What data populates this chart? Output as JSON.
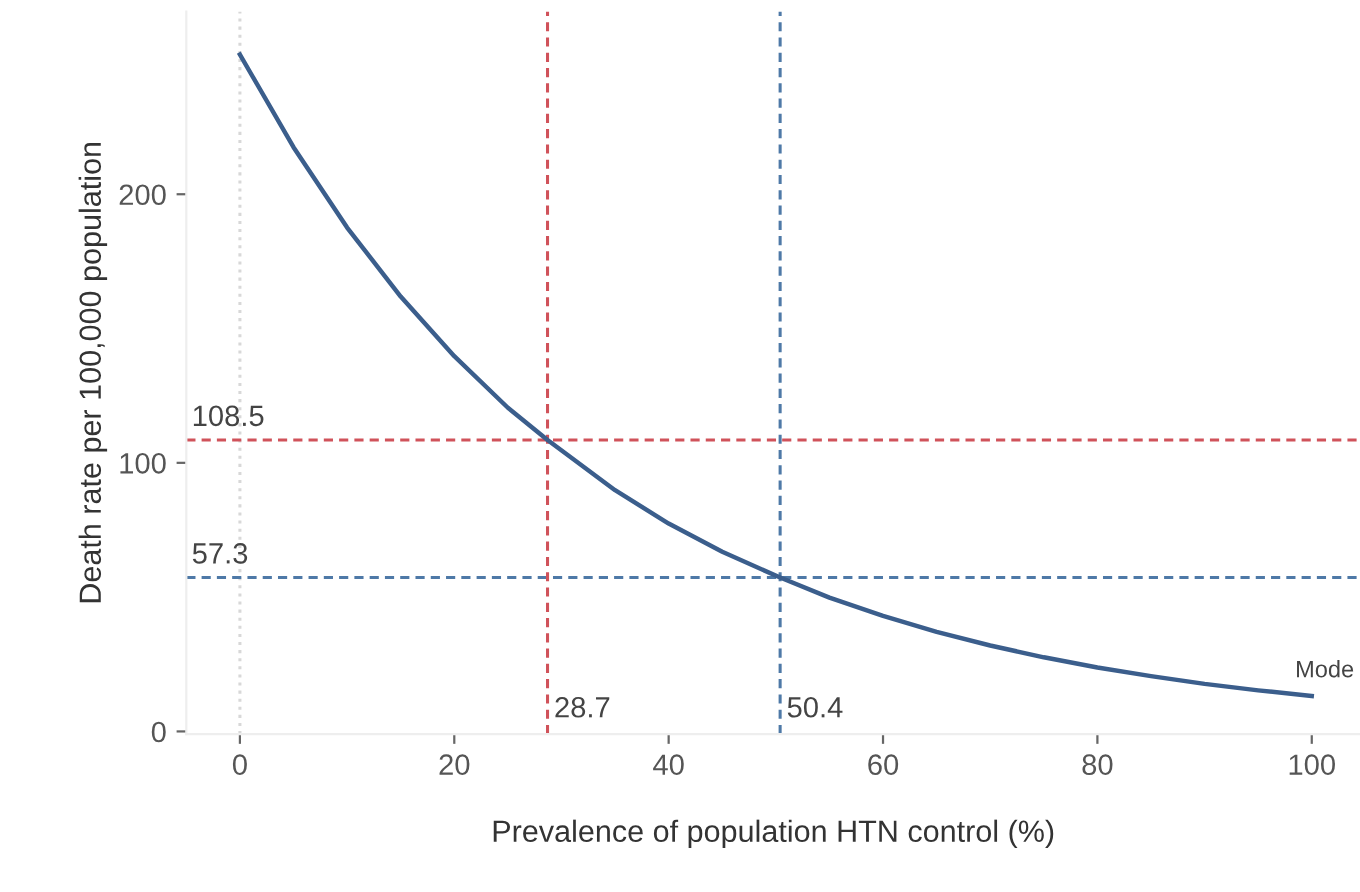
{
  "chart_data": {
    "type": "line",
    "xlabel": "Prevalence of population HTN control (%)",
    "ylabel": "Death rate per 100,000 population",
    "series": [
      {
        "color": "#3b5e8c",
        "x": [
          0,
          5,
          10,
          15,
          20,
          25,
          28.7,
          35,
          40,
          45,
          50.4,
          55,
          60,
          65,
          70,
          75,
          80,
          85,
          90,
          95,
          100
        ],
        "values": [
          252,
          217.5,
          187.6,
          161.9,
          139.7,
          120.5,
          108.5,
          89.8,
          77.4,
          66.9,
          57.3,
          49.8,
          43.0,
          37.1,
          32.0,
          27.6,
          23.8,
          20.6,
          17.7,
          15.3,
          13.2
        ]
      }
    ],
    "xlim": [
      -5,
      104.5
    ],
    "ylim": [
      -1,
      268
    ],
    "xticks": [
      0,
      20,
      40,
      60,
      80,
      100
    ],
    "yticks": [
      0,
      100,
      200
    ],
    "ref_lines": [
      {
        "axis": "x",
        "value": 0,
        "label": null,
        "color": "#d8d8d8",
        "line_style": "dotted"
      },
      {
        "axis": "y",
        "value": 108.5,
        "label": "108.5",
        "color": "#d0525a",
        "line_style": "dashed"
      },
      {
        "axis": "y",
        "value": 57.3,
        "label": "57.3",
        "color": "#4e79a7",
        "line_style": "dashed"
      },
      {
        "axis": "x",
        "value": 28.7,
        "label": "28.7",
        "color": "#d0525a",
        "line_style": "dashed"
      },
      {
        "axis": "x",
        "value": 50.4,
        "label": "50.4",
        "color": "#4e79a7",
        "line_style": "dashed"
      }
    ],
    "annotations": [
      {
        "text": "Mode",
        "x": 100,
        "y": 13.2
      }
    ],
    "grid": false,
    "legend": false,
    "marker": "none",
    "line_style": "solid"
  }
}
